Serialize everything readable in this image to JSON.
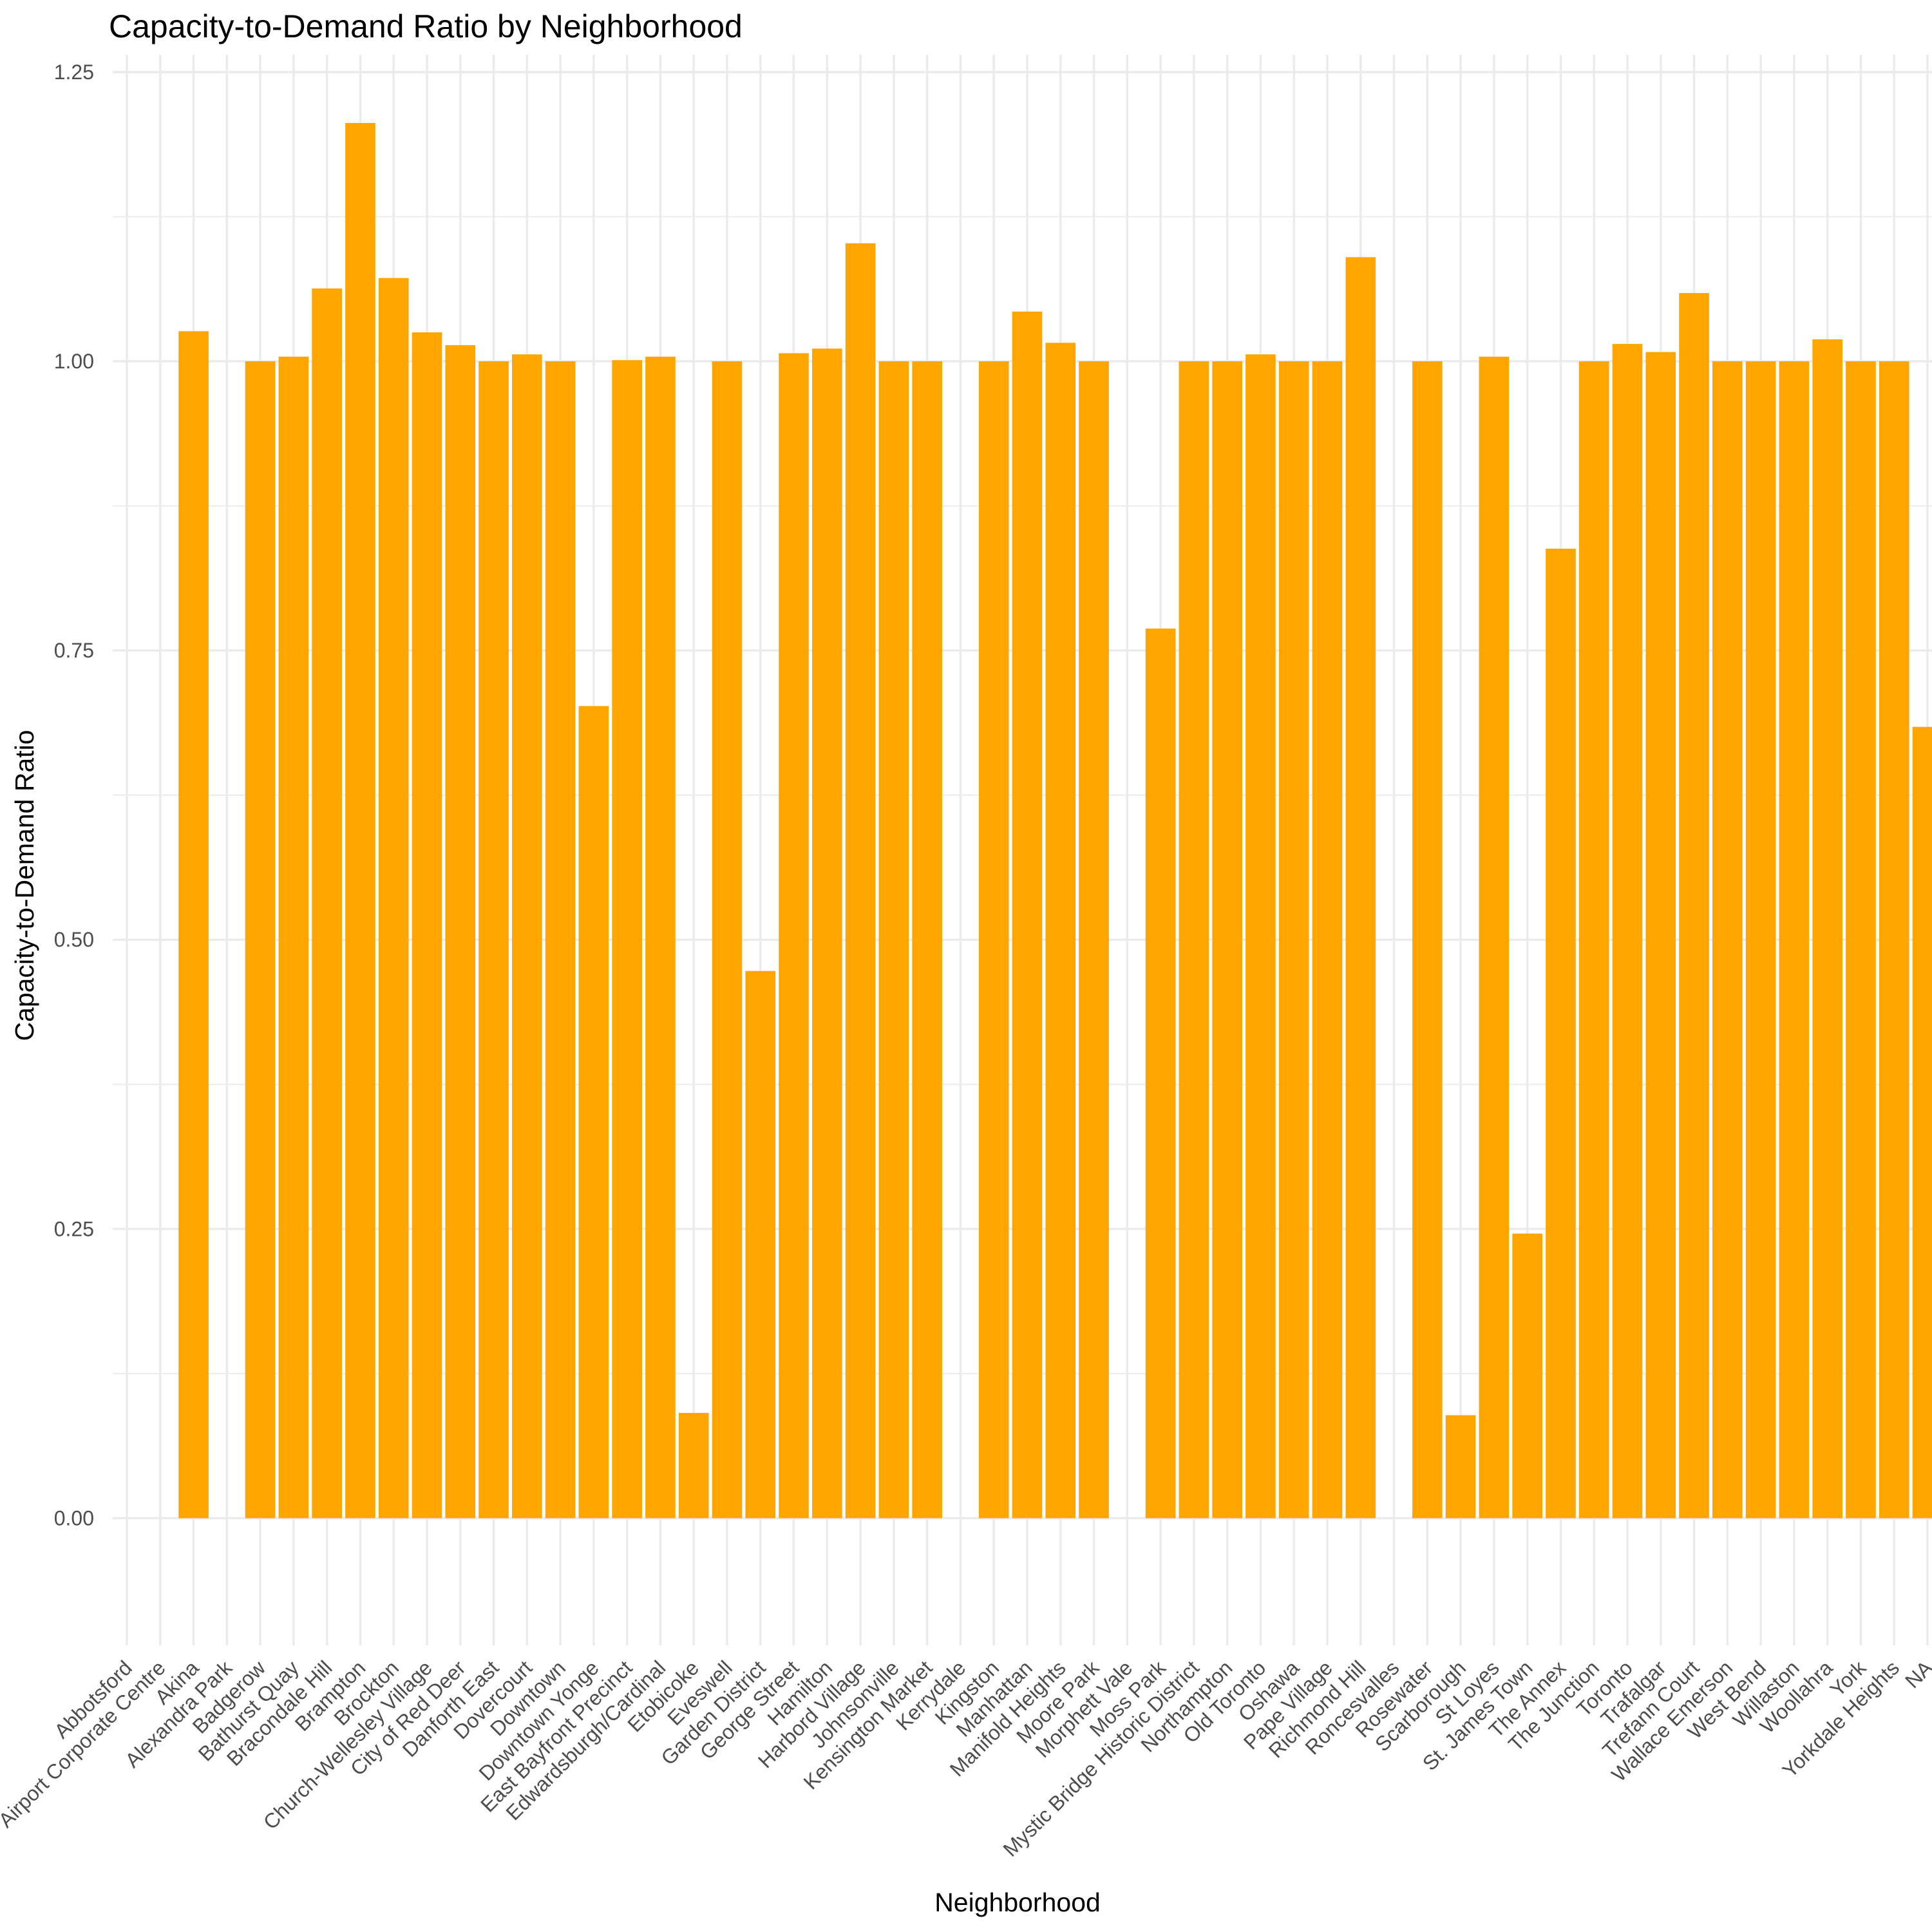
{
  "chart_data": {
    "type": "bar",
    "title": "Capacity-to-Demand Ratio by Neighborhood",
    "xlabel": "Neighborhood",
    "ylabel": "Capacity-to-Demand Ratio",
    "ylim": [
      -0.11,
      1.265
    ],
    "y_ticks": [
      "0.00",
      "0.25",
      "0.50",
      "0.75",
      "1.00",
      "1.25"
    ],
    "y_tick_values": [
      0,
      0.25,
      0.5,
      0.75,
      1.0,
      1.25
    ],
    "grid": true,
    "bar_color": "#FFA500",
    "categories": [
      "Abbotsford",
      "Airport Corporate Centre",
      "Akina",
      "Alexandra Park",
      "Badgerow",
      "Bathurst Quay",
      "Bracondale Hill",
      "Brampton",
      "Brockton",
      "Church-Wellesley Village",
      "City of Red Deer",
      "Danforth East",
      "Dovercourt",
      "Downtown",
      "Downtown Yonge",
      "East Bayfront Precinct",
      "Edwardsburgh/Cardinal",
      "Etobicoke",
      "Eveswell",
      "Garden District",
      "George Street",
      "Hamilton",
      "Harbord Village",
      "Johnsonville",
      "Kensington Market",
      "Kerrydale",
      "Kingston",
      "Manhattan",
      "Manifold Heights",
      "Moore Park",
      "Morphett Vale",
      "Moss Park",
      "Mystic Bridge Historic District",
      "Northampton",
      "Old Toronto",
      "Oshawa",
      "Pape Village",
      "Richmond Hill",
      "Roncesvalles",
      "Rosewater",
      "Scarborough",
      "St Loyes",
      "St. James Town",
      "The Annex",
      "The Junction",
      "Toronto",
      "Trafalgar",
      "Trefann Court",
      "Wallace Emerson",
      "West Bend",
      "Willaston",
      "Woollahra",
      "York",
      "Yorkdale Heights",
      "NA"
    ],
    "values": [
      null,
      null,
      1.026,
      null,
      1.0,
      1.004,
      1.063,
      1.206,
      1.072,
      1.025,
      1.014,
      1.0,
      1.006,
      1.0,
      0.702,
      1.001,
      1.004,
      0.091,
      1.0,
      0.473,
      1.007,
      1.011,
      1.102,
      1.0,
      1.0,
      null,
      1.0,
      1.043,
      1.016,
      1.0,
      null,
      0.769,
      1.0,
      1.0,
      1.006,
      1.0,
      1.0,
      1.09,
      null,
      1.0,
      0.089,
      1.004,
      0.246,
      0.838,
      1.0,
      1.015,
      1.008,
      1.059,
      1.0,
      1.0,
      1.0,
      1.019,
      1.0,
      1.0,
      0.684
    ]
  }
}
